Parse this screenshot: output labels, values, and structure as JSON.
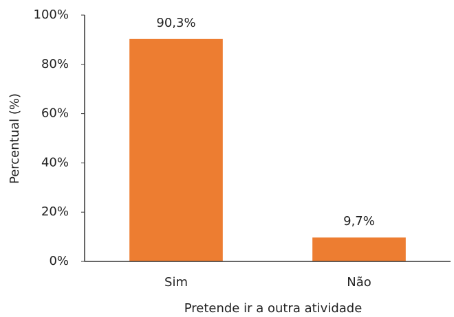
{
  "chart_data": {
    "type": "bar",
    "categories": [
      "Sim",
      "Não"
    ],
    "values": [
      90.3,
      9.7
    ],
    "value_labels": [
      "90,3%",
      "9,7%"
    ],
    "color": "#ed7d31",
    "ylim": [
      0,
      100
    ],
    "yticks": [
      {
        "value": 0,
        "label": "0%"
      },
      {
        "value": 20,
        "label": "20%"
      },
      {
        "value": 40,
        "label": "40%"
      },
      {
        "value": 60,
        "label": "60%"
      },
      {
        "value": 80,
        "label": "80%"
      },
      {
        "value": 100,
        "label": "100%"
      }
    ],
    "x_label": "Pretende ir a outra atividade",
    "y_label": "Percentual (%)",
    "grid": false
  }
}
